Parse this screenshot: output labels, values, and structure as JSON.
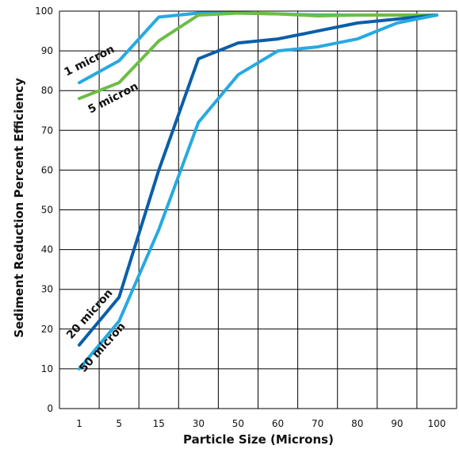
{
  "chart_data": {
    "type": "line",
    "title": "",
    "xlabel": "Particle Size (Microns)",
    "ylabel": "Sediment Reduction Percent Efficiency",
    "x": [
      "1",
      "5",
      "15",
      "30",
      "50",
      "60",
      "70",
      "80",
      "90",
      "100"
    ],
    "ylim": [
      0,
      100
    ],
    "yticks": [
      0,
      10,
      20,
      30,
      40,
      50,
      60,
      70,
      80,
      90,
      100
    ],
    "grid": true,
    "legend": "none",
    "series": [
      {
        "name": "1 micron",
        "color": "#27a9e1",
        "values": [
          82,
          87.5,
          98.5,
          99.5,
          99.5,
          99.3,
          99,
          99,
          99,
          99
        ]
      },
      {
        "name": "5 micron",
        "color": "#6cbd45",
        "values": [
          78,
          82,
          92.5,
          99,
          99.5,
          99.3,
          98.8,
          99,
          99,
          99
        ]
      },
      {
        "name": "20 micron",
        "color": "#0b5ea8",
        "values": [
          16,
          28,
          60,
          88,
          92,
          93,
          95,
          97,
          98,
          99
        ]
      },
      {
        "name": "50 micron",
        "color": "#27a9e1",
        "values": [
          10,
          22,
          45,
          72,
          84,
          90,
          91,
          93,
          97,
          99
        ]
      }
    ]
  }
}
